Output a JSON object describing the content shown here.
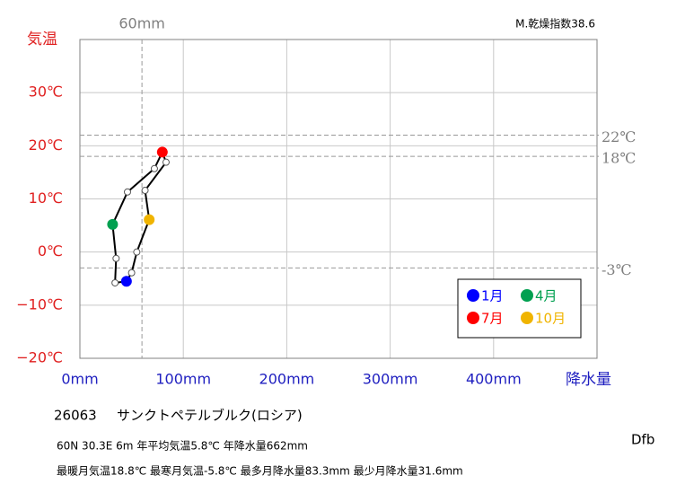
{
  "chart_data": {
    "type": "line",
    "station": "26063",
    "title": "サンクトペテルブルク(ロシア)",
    "info": [
      "60N  30.3E 6m  年平均気温5.8℃ 年降水量662mm",
      "最暖月気温18.8℃ 最寒月気温-5.8℃ 最多月降水量83.3mm 最少月降水量31.6mm"
    ],
    "index_label": "M.乾燥指数38.6",
    "climate_class": "Dfb",
    "x_label": "降水量",
    "y_label": "気温",
    "categories": [
      "1月",
      null,
      null,
      "4月",
      null,
      null,
      "7月",
      null,
      null,
      "10月",
      null,
      null
    ],
    "x": [
      45,
      34,
      35,
      31.6,
      46,
      72,
      79.7,
      83.3,
      63,
      67,
      55,
      50
    ],
    "values": [
      -5.5,
      -5.8,
      -1.2,
      5.2,
      11.3,
      15.7,
      18.8,
      16.9,
      11.6,
      6.1,
      0,
      -3.9
    ],
    "point_colors": [
      "#0000ff",
      "#ffffff",
      "#ffffff",
      "#00a050",
      "#ffffff",
      "#ffffff",
      "#ff0000",
      "#ffffff",
      "#ffffff",
      "#f0b400",
      "#ffffff",
      "#ffffff"
    ],
    "line_color": "#000000",
    "xlim": [
      0,
      500
    ],
    "ylim": [
      -20,
      40
    ],
    "xticks": [
      {
        "value": 0,
        "label": "0mm"
      },
      {
        "value": 100,
        "label": "100mm"
      },
      {
        "value": 200,
        "label": "200mm"
      },
      {
        "value": 300,
        "label": "300mm"
      },
      {
        "value": 400,
        "label": "400mm"
      }
    ],
    "yticks": [
      {
        "value": -20,
        "label": "−20℃"
      },
      {
        "value": -10,
        "label": "−10℃"
      },
      {
        "value": 0,
        "label": "0℃"
      },
      {
        "value": 10,
        "label": "10℃"
      },
      {
        "value": 20,
        "label": "20℃"
      },
      {
        "value": 30,
        "label": "30℃"
      }
    ],
    "reference_lines": [
      {
        "axis": "x",
        "value": 60,
        "label": "60mm"
      },
      {
        "axis": "y",
        "value": 22,
        "label": "22℃"
      },
      {
        "axis": "y",
        "value": 18,
        "label": "18℃"
      },
      {
        "axis": "y",
        "value": -3,
        "label": "-3℃"
      }
    ],
    "grid": true
  }
}
